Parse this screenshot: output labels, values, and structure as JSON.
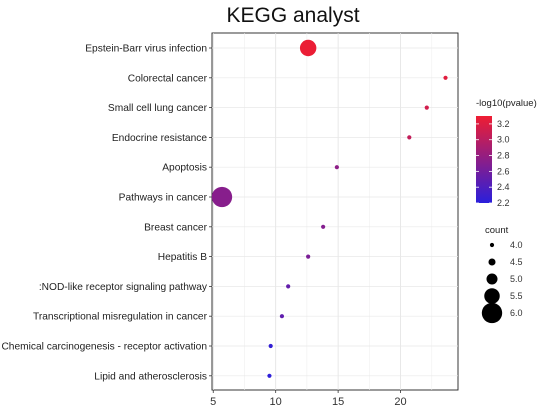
{
  "chart_data": {
    "type": "scatter",
    "title": "KEGG analyst",
    "xlabel": "",
    "ylabel": "",
    "xlim": [
      4.9,
      24.6
    ],
    "xticks": [
      5,
      10,
      15,
      20
    ],
    "grid": true,
    "legend_position": "right",
    "color_legend": {
      "title": "-log10(pvalue)",
      "min": 2.2,
      "max": 3.3,
      "ticks": [
        3.2,
        3.0,
        2.8,
        2.6,
        2.4,
        2.2
      ],
      "colors": [
        "#2a1fdc",
        "#ef1d32"
      ]
    },
    "size_legend": {
      "title": "count",
      "values": [
        4.0,
        4.5,
        5.0,
        5.5,
        6.0
      ],
      "labels": [
        "4.0",
        "4.5",
        "5.0",
        "5.5",
        "6.0"
      ]
    },
    "points": [
      {
        "category": "Epstein-Barr virus infection",
        "x": 12.6,
        "count": 5.6,
        "pvalue_log": 3.28
      },
      {
        "category": "Colorectal cancer",
        "x": 23.6,
        "count": 4.0,
        "pvalue_log": 3.22
      },
      {
        "category": "Small cell lung cancer",
        "x": 22.1,
        "count": 4.0,
        "pvalue_log": 3.13
      },
      {
        "category": "Endocrine resistance",
        "x": 20.7,
        "count": 4.0,
        "pvalue_log": 3.05
      },
      {
        "category": "Apoptosis",
        "x": 14.9,
        "count": 4.0,
        "pvalue_log": 2.75
      },
      {
        "category": "Pathways in cancer",
        "x": 5.7,
        "count": 6.0,
        "pvalue_log": 2.72
      },
      {
        "category": "Breast cancer",
        "x": 13.8,
        "count": 4.0,
        "pvalue_log": 2.7
      },
      {
        "category": "Hepatitis B",
        "x": 12.6,
        "count": 4.0,
        "pvalue_log": 2.65
      },
      {
        "category": ":NOD-like receptor signaling pathway",
        "x": 11.0,
        "count": 4.0,
        "pvalue_log": 2.52
      },
      {
        "category": "Transcriptional misregulation in cancer",
        "x": 10.5,
        "count": 4.0,
        "pvalue_log": 2.5
      },
      {
        "category": "Chemical carcinogenesis - receptor activation",
        "x": 9.6,
        "count": 4.0,
        "pvalue_log": 2.25
      },
      {
        "category": "Lipid and atherosclerosis",
        "x": 9.5,
        "count": 4.0,
        "pvalue_log": 2.22
      }
    ]
  }
}
